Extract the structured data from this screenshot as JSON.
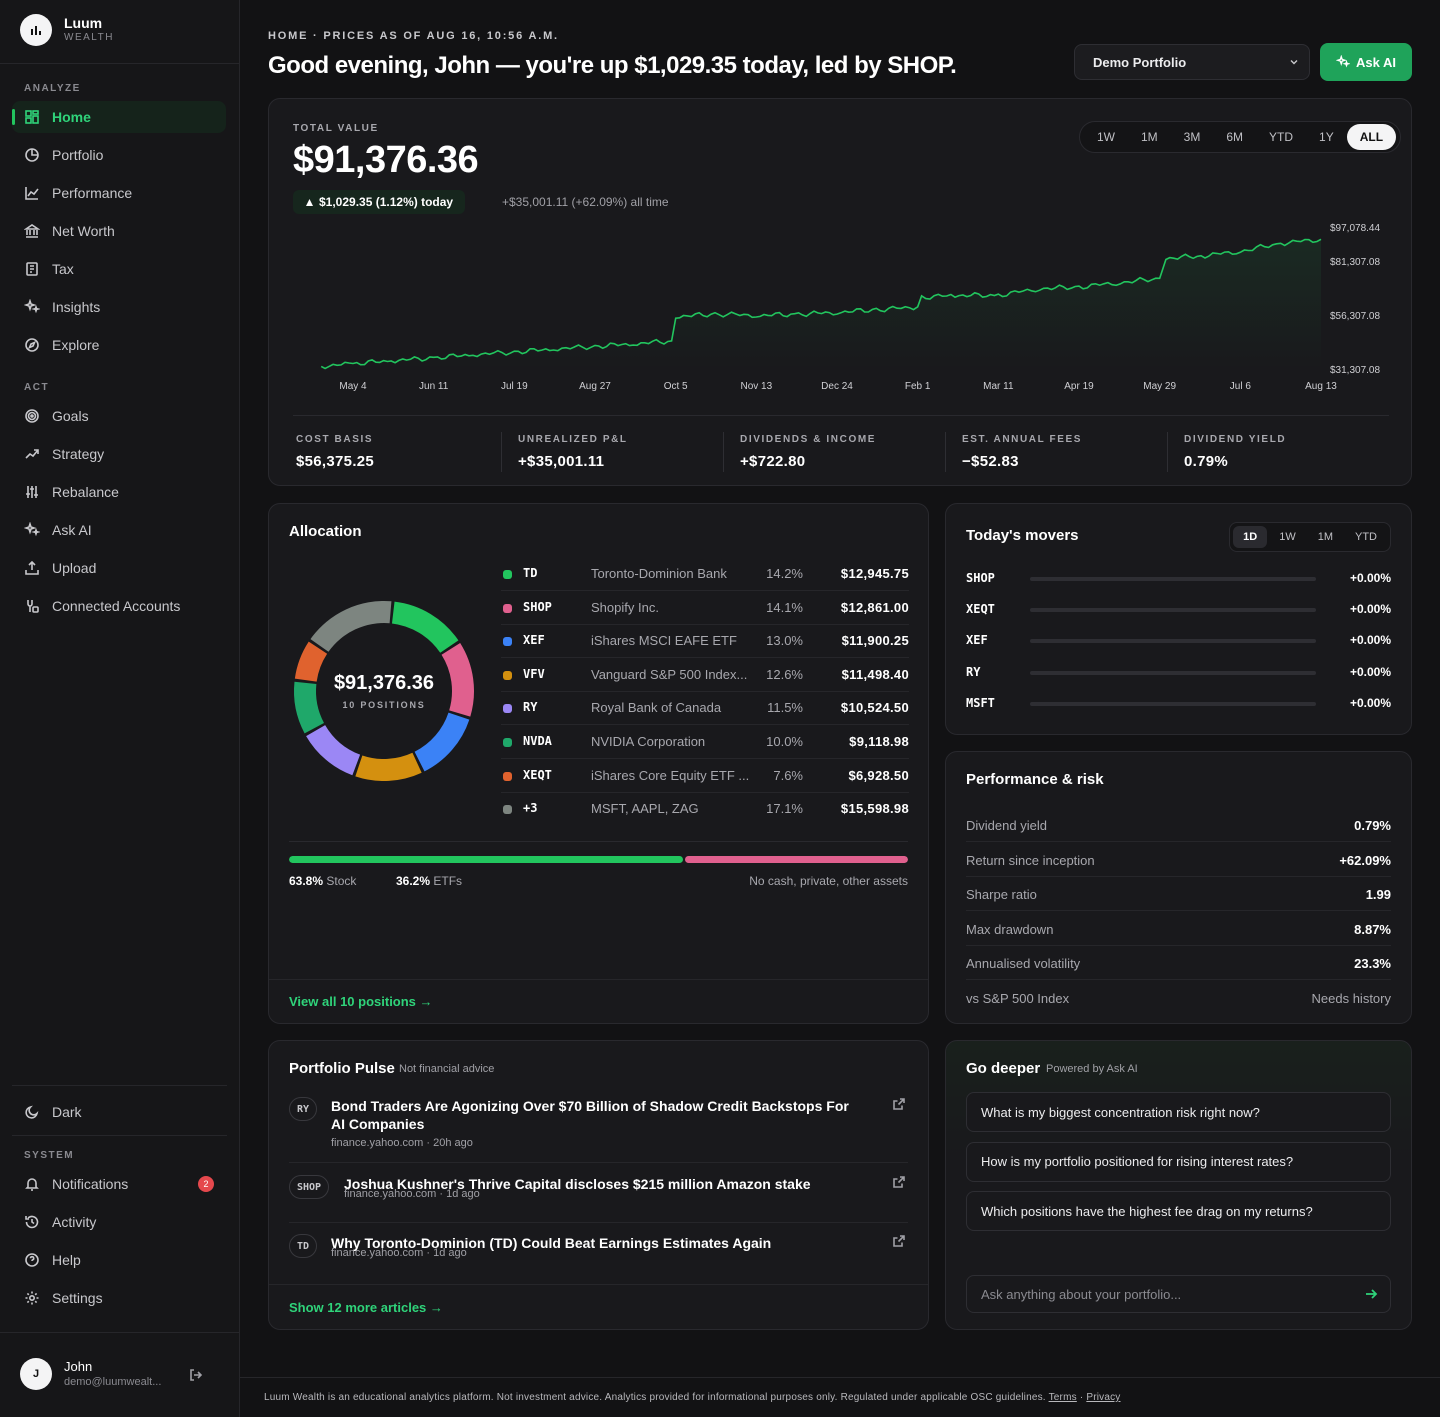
{
  "brand": {
    "name": "Luum",
    "sub": "WEALTH"
  },
  "sidebar": {
    "analyze_label": "ANALYZE",
    "act_label": "ACT",
    "system_label": "SYSTEM",
    "analyze": [
      {
        "label": "Home",
        "icon": "home-grid-icon",
        "active": true
      },
      {
        "label": "Portfolio",
        "icon": "pie-chart-icon"
      },
      {
        "label": "Performance",
        "icon": "line-chart-icon"
      },
      {
        "label": "Net Worth",
        "icon": "bank-icon"
      },
      {
        "label": "Tax",
        "icon": "receipt-icon"
      },
      {
        "label": "Insights",
        "icon": "sparkle-icon"
      },
      {
        "label": "Explore",
        "icon": "compass-icon"
      }
    ],
    "act": [
      {
        "label": "Goals",
        "icon": "target-icon"
      },
      {
        "label": "Strategy",
        "icon": "trend-up-icon"
      },
      {
        "label": "Rebalance",
        "icon": "sliders-icon"
      },
      {
        "label": "Ask AI",
        "icon": "sparkle-icon"
      },
      {
        "label": "Upload",
        "icon": "upload-icon"
      },
      {
        "label": "Connected Accounts",
        "icon": "link-icon"
      }
    ],
    "theme_label": "Dark",
    "system": [
      {
        "label": "Notifications",
        "icon": "bell-icon",
        "badge": "2"
      },
      {
        "label": "Activity",
        "icon": "history-icon"
      },
      {
        "label": "Help",
        "icon": "help-icon"
      },
      {
        "label": "Settings",
        "icon": "gear-icon"
      }
    ],
    "user": {
      "initial": "J",
      "name": "John",
      "email": "demo@luumwealt..."
    }
  },
  "header": {
    "breadcrumb": "HOME · PRICES AS OF AUG 16, 10:56 A.M.",
    "headline": "Good evening, John — you're up $1,029.35 today, led by SHOP.",
    "portfolio_select": "Demo Portfolio",
    "ask_ai_label": "Ask AI"
  },
  "value_card": {
    "label": "TOTAL VALUE",
    "value": "$91,376.36",
    "today_change": "$1,029.35 (1.12%) today",
    "all_time": "+$35,001.11 (+62.09%) all time",
    "ranges": [
      "1W",
      "1M",
      "3M",
      "6M",
      "YTD",
      "1Y",
      "ALL"
    ],
    "active_range": "ALL",
    "metrics": [
      {
        "label": "COST BASIS",
        "value": "$56,375.25"
      },
      {
        "label": "UNREALIZED P&L",
        "value": "+$35,001.11"
      },
      {
        "label": "DIVIDENDS & INCOME",
        "value": "+$722.80"
      },
      {
        "label": "EST. ANNUAL FEES",
        "value": "−$52.83"
      },
      {
        "label": "DIVIDEND YIELD",
        "value": "0.79%"
      }
    ]
  },
  "chart_data": {
    "type": "line",
    "title": "",
    "xlabel": "",
    "ylabel": "",
    "x_ticks": [
      "May 4",
      "Jun 11",
      "Jul 19",
      "Aug 27",
      "Oct 5",
      "Nov 13",
      "Dec 24",
      "Feb 1",
      "Mar 11",
      "Apr 19",
      "May 29",
      "Jul 6",
      "Aug 13"
    ],
    "y_tick_labels": [
      "$97,078.44",
      "$81,307.08",
      "$56,307.08",
      "$31,307.08"
    ],
    "y_ticks": [
      97078.44,
      81307.08,
      56307.08,
      31307.08
    ],
    "ylim": [
      31307.08,
      97078.44
    ],
    "grid": false,
    "series": [
      {
        "color": "#22c55e",
        "x": [
          "Apr 20",
          "May 4",
          "May 22",
          "Jun 11",
          "Jun 30",
          "Jul 19",
          "Aug 7",
          "Aug 27",
          "Sep 15",
          "Oct 3",
          "Oct 5",
          "Oct 24",
          "Nov 13",
          "Dec 4",
          "Dec 24",
          "Jan 12",
          "Feb 1",
          "Feb 3",
          "Feb 20",
          "Mar 11",
          "Mar 31",
          "Apr 19",
          "May 9",
          "May 29",
          "Jun 1",
          "Jun 18",
          "Jul 6",
          "Jul 25",
          "Aug 13"
        ],
        "values": [
          32500,
          33800,
          35200,
          36500,
          38000,
          39200,
          40600,
          41800,
          43000,
          44300,
          55600,
          56800,
          56200,
          56700,
          57600,
          58800,
          60100,
          64600,
          65400,
          65500,
          68600,
          69300,
          71400,
          73300,
          82600,
          83700,
          85800,
          89600,
          91376.36
        ]
      }
    ]
  },
  "allocation": {
    "title": "Allocation",
    "total": "$91,376.36",
    "positions_label": "10 POSITIONS",
    "holdings": [
      {
        "ticker": "TD",
        "name": "Toronto-Dominion Bank",
        "pct": "14.2%",
        "value": "$12,945.75",
        "color": "#22c55e",
        "weight": 14.2
      },
      {
        "ticker": "SHOP",
        "name": "Shopify Inc.",
        "pct": "14.1%",
        "value": "$12,861.00",
        "color": "#e0608e",
        "weight": 14.1
      },
      {
        "ticker": "XEF",
        "name": "iShares MSCI EAFE ETF",
        "pct": "13.0%",
        "value": "$11,900.25",
        "color": "#3b82f6",
        "weight": 13.0
      },
      {
        "ticker": "VFV",
        "name": "Vanguard S&P 500 Index...",
        "pct": "12.6%",
        "value": "$11,498.40",
        "color": "#d4900f",
        "weight": 12.6
      },
      {
        "ticker": "RY",
        "name": "Royal Bank of Canada",
        "pct": "11.5%",
        "value": "$10,524.50",
        "color": "#9b87f5",
        "weight": 11.5
      },
      {
        "ticker": "NVDA",
        "name": "NVIDIA Corporation",
        "pct": "10.0%",
        "value": "$9,118.98",
        "color": "#1fa86a",
        "weight": 10.0
      },
      {
        "ticker": "XEQT",
        "name": "iShares Core Equity ETF ...",
        "pct": "7.6%",
        "value": "$6,928.50",
        "color": "#e0622e",
        "weight": 7.6
      },
      {
        "ticker": "+3",
        "name": "MSFT, AAPL, ZAG",
        "pct": "17.1%",
        "value": "$15,598.98",
        "color": "#7d8580",
        "weight": 17.1
      }
    ],
    "split": [
      {
        "pct": "63.8%",
        "label": "Stock",
        "color": "#22c55e",
        "weight": 63.8
      },
      {
        "pct": "36.2%",
        "label": "ETFs",
        "color": "#e0608e",
        "weight": 36.2
      }
    ],
    "other_note": "No cash, private, other assets",
    "view_all": "View all 10 positions →"
  },
  "movers": {
    "title": "Today's movers",
    "tabs": [
      "1D",
      "1W",
      "1M",
      "YTD"
    ],
    "active_tab": "1D",
    "rows": [
      {
        "ticker": "SHOP",
        "change": "+0.00%"
      },
      {
        "ticker": "XEQT",
        "change": "+0.00%"
      },
      {
        "ticker": "XEF",
        "change": "+0.00%"
      },
      {
        "ticker": "RY",
        "change": "+0.00%"
      },
      {
        "ticker": "MSFT",
        "change": "+0.00%"
      }
    ]
  },
  "risk": {
    "title": "Performance & risk",
    "rows": [
      {
        "label": "Dividend yield",
        "value": "0.79%"
      },
      {
        "label": "Return since inception",
        "value": "+62.09%"
      },
      {
        "label": "Sharpe ratio",
        "value": "1.99"
      },
      {
        "label": "Max drawdown",
        "value": "8.87%"
      },
      {
        "label": "Annualised volatility",
        "value": "23.3%"
      },
      {
        "label": "vs S&P 500 Index",
        "value": "Needs history"
      }
    ]
  },
  "pulse": {
    "title": "Portfolio Pulse",
    "subtitle": "Not financial advice",
    "articles": [
      {
        "ticker": "RY",
        "title": "Bond Traders Are Agonizing Over $70 Billion of Shadow Credit Backstops For AI Companies",
        "source": "finance.yahoo.com · 20h ago"
      },
      {
        "ticker": "SHOP",
        "title": "Joshua Kushner's Thrive Capital discloses $215 million Amazon stake",
        "source": "finance.yahoo.com · 1d ago"
      },
      {
        "ticker": "TD",
        "title": "Why Toronto-Dominion (TD) Could Beat Earnings Estimates Again",
        "source": "finance.yahoo.com · 1d ago"
      }
    ],
    "more": "Show 12 more articles →"
  },
  "deeper": {
    "title": "Go deeper",
    "subtitle": "Powered by Ask AI",
    "questions": [
      "What is my biggest concentration risk right now?",
      "How is my portfolio positioned for rising interest rates?",
      "Which positions have the highest fee drag on my returns?"
    ],
    "placeholder": "Ask anything about your portfolio..."
  },
  "footer": {
    "text": "Luum Wealth is an educational analytics platform. Not investment advice. Analytics provided for informational purposes only. Regulated under applicable OSC guidelines.",
    "terms": "Terms",
    "sep": "·",
    "privacy": "Privacy"
  }
}
